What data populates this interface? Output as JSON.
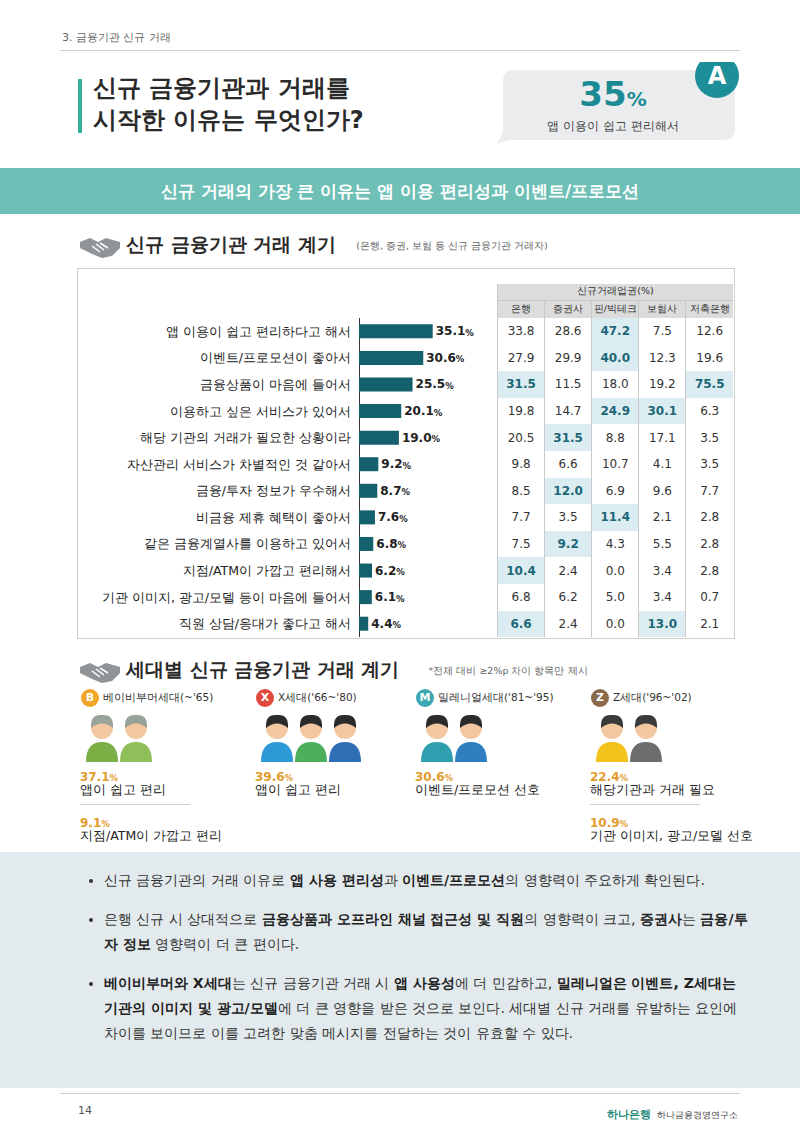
{
  "header": {
    "section": "3. 금융기관 신규 거래",
    "title": [
      "신규 금융기관과 거래를",
      "시작한 이유는 무엇인가?"
    ],
    "answer": {
      "badge": "A",
      "value": "35%",
      "text": "앱 이용이 쉽고 편리해서"
    }
  },
  "banner": "신규 거래의 가장 큰 이유는 앱 이용 편리성과 이벤트/프로모션",
  "section1": {
    "title": "신규 금융기관 거래 계기",
    "note": "(은행, 증권, 보험 등 신규 금융기관 거래자)"
  },
  "chart_data": {
    "type": "bar",
    "orientation": "horizontal",
    "categories": [
      "앱 이용이 쉽고 편리하다고 해서",
      "이벤트/프로모션이 좋아서",
      "금융상품이 마음에 들어서",
      "이용하고 싶은 서비스가 있어서",
      "해당 기관의 거래가 필요한 상황이라",
      "자산관리 서비스가 차별적인 것 같아서",
      "금융/투자 정보가 우수해서",
      "비금융 제휴 혜택이 좋아서",
      "같은 금융계열사를 이용하고 있어서",
      "지점/ATM이 가깝고 편리해서",
      "기관 이미지, 광고/모델 등이 마음에 들어서",
      "직원 상담/응대가 좋다고 해서"
    ],
    "values": [
      35.1,
      30.6,
      25.5,
      20.1,
      19.0,
      9.2,
      8.7,
      7.6,
      6.8,
      6.2,
      6.1,
      4.4
    ],
    "value_labels": [
      "35.1%",
      "30.6%",
      "25.5%",
      "20.1%",
      "19.0%",
      "9.2%",
      "8.7%",
      "7.6%",
      "6.8%",
      "6.2%",
      "6.1%",
      "4.4%"
    ],
    "color": "#14606d",
    "xlim": [
      0,
      40
    ],
    "grid": false,
    "data_labels": true,
    "tick_labels": "y"
  },
  "table": {
    "title": "신규거래업권(%)",
    "columns": [
      "은행",
      "증권사",
      "핀/빅테크",
      "보험사",
      "저축은행"
    ],
    "rows": [
      [
        "33.8",
        "28.6",
        {
          "text": "47.2",
          "highlight": true
        },
        "7.5",
        "12.6"
      ],
      [
        "27.9",
        "29.9",
        {
          "text": "40.0",
          "highlight": true
        },
        "12.3",
        "19.6"
      ],
      [
        {
          "text": "31.5",
          "highlight": true
        },
        "11.5",
        "18.0",
        "19.2",
        {
          "text": "75.5",
          "highlight": true
        }
      ],
      [
        "19.8",
        "14.7",
        {
          "text": "24.9",
          "highlight": true
        },
        {
          "text": "30.1",
          "highlight": true
        },
        "6.3"
      ],
      [
        "20.5",
        {
          "text": "31.5",
          "highlight": true
        },
        "8.8",
        "17.1",
        "3.5"
      ],
      [
        "9.8",
        "6.6",
        "10.7",
        "4.1",
        "3.5"
      ],
      [
        "8.5",
        {
          "text": "12.0",
          "highlight": true
        },
        "6.9",
        "9.6",
        "7.7"
      ],
      [
        "7.7",
        "3.5",
        {
          "text": "11.4",
          "highlight": true
        },
        "2.1",
        "2.8"
      ],
      [
        "7.5",
        {
          "text": "9.2",
          "highlight": true
        },
        "4.3",
        "5.5",
        "2.8"
      ],
      [
        {
          "text": "10.4",
          "highlight": true
        },
        "2.4",
        "0.0",
        "3.4",
        "2.8"
      ],
      [
        "6.8",
        "6.2",
        "5.0",
        "3.4",
        "0.7"
      ],
      [
        {
          "text": "6.6",
          "highlight": true
        },
        "2.4",
        "0.0",
        {
          "text": "13.0",
          "highlight": true
        },
        "2.1"
      ]
    ]
  },
  "section2": {
    "title": "세대별 신규 금융기관 거래 계기",
    "note": "*전체 대비 ≥2%p 차이 항목만 제시",
    "generations": [
      {
        "badge": "B",
        "name": "베이비부머세대(~'65)",
        "color": "#f0a528",
        "items": [
          {
            "value": "37.1%",
            "text": "앱이 쉽고 편리"
          },
          {
            "value": "9.1%",
            "text": "지점/ATM이 가깝고 편리"
          }
        ]
      },
      {
        "badge": "X",
        "name": "X세대('66~'80)",
        "color": "#e04a3c",
        "items": [
          {
            "value": "39.6%",
            "text": "앱이 쉽고 편리"
          }
        ]
      },
      {
        "badge": "M",
        "name": "밀레니얼세대('81~'95)",
        "color": "#3ba7b3",
        "items": [
          {
            "value": "30.6%",
            "text": "이벤트/프로모션 선호"
          }
        ]
      },
      {
        "badge": "Z",
        "name": "Z세대('96~'02)",
        "color": "#8b6a4b",
        "items": [
          {
            "value": "22.4%",
            "text": "해당기관과 거래 필요"
          },
          {
            "value": "10.9%",
            "text": "기관 이미지, 광고/모델 선호"
          }
        ]
      }
    ]
  },
  "bullets": [
    [
      {
        "text": "신규 금융기관의 거래 이유로 "
      },
      {
        "text": "앱 사용 편리성",
        "bold": true
      },
      {
        "text": "과 "
      },
      {
        "text": "이벤트/프로모션",
        "bold": true
      },
      {
        "text": "의 영향력이 주요하게 확인된다."
      }
    ],
    [
      {
        "text": "은행 신규 시 상대적으로 "
      },
      {
        "text": "금융상품과 오프라인 채널 접근성 및 직원",
        "bold": true
      },
      {
        "text": "의 영향력이 크고, "
      },
      {
        "text": "증권사",
        "bold": true
      },
      {
        "text": "는 "
      },
      {
        "text": "금융/투자 정보",
        "bold": true
      },
      {
        "text": " 영향력이 더 큰 편이다."
      }
    ],
    [
      {
        "text": "베이비부머와 X세대",
        "bold": true
      },
      {
        "text": "는 신규 금융기관 거래 시 "
      },
      {
        "text": "앱 사용성",
        "bold": true
      },
      {
        "text": "에 더 민감하고, "
      },
      {
        "text": "밀레니얼은 이벤트, Z세대는 기관의 이미지 및 광고/모델",
        "bold": true
      },
      {
        "text": "에 더 큰 영향을 받은 것으로 보인다. 세대별 신규 거래를 유발하는 요인에 차이를 보이므로 이를 고려한 맞춤 메시지를 전달하는 것이 유효할 수 있다."
      }
    ]
  ],
  "footer": {
    "page": "14",
    "logo": "하나은행",
    "institute": "하나금융경영연구소"
  }
}
